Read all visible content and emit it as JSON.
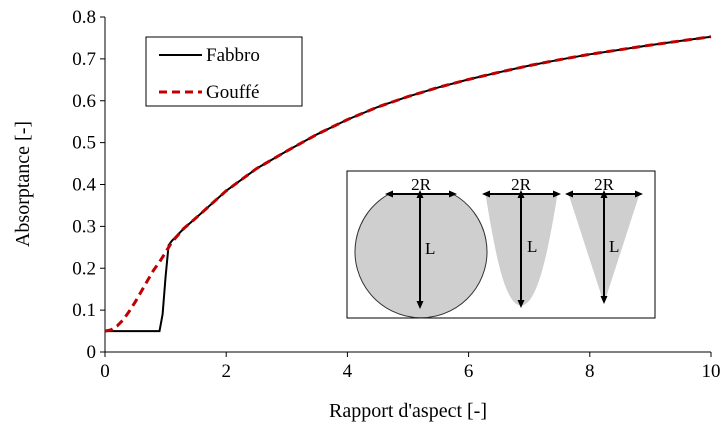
{
  "chart_data": {
    "type": "line",
    "xlabel": "Rapport d'aspect [-]",
    "ylabel": "Absorptance [-]",
    "xlim": [
      0,
      10
    ],
    "ylim": [
      0,
      0.8
    ],
    "x_ticks": [
      "0",
      "2",
      "4",
      "6",
      "8",
      "10"
    ],
    "y_ticks": [
      "0",
      "0.1",
      "0.2",
      "0.3",
      "0.4",
      "0.5",
      "0.6",
      "0.7",
      "0.8"
    ],
    "grid": false,
    "legend_position": "top-left",
    "series": [
      {
        "name": "Fabbro",
        "color": "#000000",
        "style": "solid",
        "x": [
          0,
          0.5,
          0.9,
          0.95,
          1.0,
          1.05,
          1.1,
          1.3,
          1.5,
          2,
          2.5,
          3,
          3.5,
          4,
          4.5,
          5,
          5.5,
          6,
          6.5,
          7,
          7.5,
          8,
          8.5,
          9,
          9.5,
          10
        ],
        "y": [
          0.05,
          0.05,
          0.05,
          0.09,
          0.18,
          0.255,
          0.265,
          0.295,
          0.32,
          0.385,
          0.438,
          0.48,
          0.52,
          0.555,
          0.585,
          0.61,
          0.632,
          0.651,
          0.668,
          0.684,
          0.698,
          0.711,
          0.722,
          0.733,
          0.743,
          0.753
        ]
      },
      {
        "name": "Gouffé",
        "color": "#c00000",
        "style": "dashed",
        "x": [
          0,
          0.1,
          0.2,
          0.3,
          0.4,
          0.5,
          0.6,
          0.7,
          0.8,
          0.9,
          1.0,
          1.1,
          1.3,
          1.5,
          2,
          2.5,
          3,
          3.5,
          4,
          4.5,
          5,
          5.5,
          6,
          6.5,
          7,
          7.5,
          8,
          8.5,
          9,
          9.5,
          10
        ],
        "y": [
          0.05,
          0.053,
          0.062,
          0.077,
          0.097,
          0.12,
          0.145,
          0.17,
          0.195,
          0.215,
          0.238,
          0.262,
          0.295,
          0.32,
          0.385,
          0.438,
          0.48,
          0.52,
          0.555,
          0.585,
          0.61,
          0.632,
          0.651,
          0.668,
          0.684,
          0.698,
          0.711,
          0.722,
          0.733,
          0.743,
          0.753
        ]
      }
    ]
  },
  "legend": {
    "fabbro": "Fabbro",
    "gouffe": "Gouffé"
  },
  "inset": {
    "shapes": [
      {
        "name": "sphere",
        "width_label": "2R",
        "length_label": "L"
      },
      {
        "name": "paraboloid",
        "width_label": "2R",
        "length_label": "L"
      },
      {
        "name": "cone",
        "width_label": "2R",
        "length_label": "L"
      }
    ]
  }
}
